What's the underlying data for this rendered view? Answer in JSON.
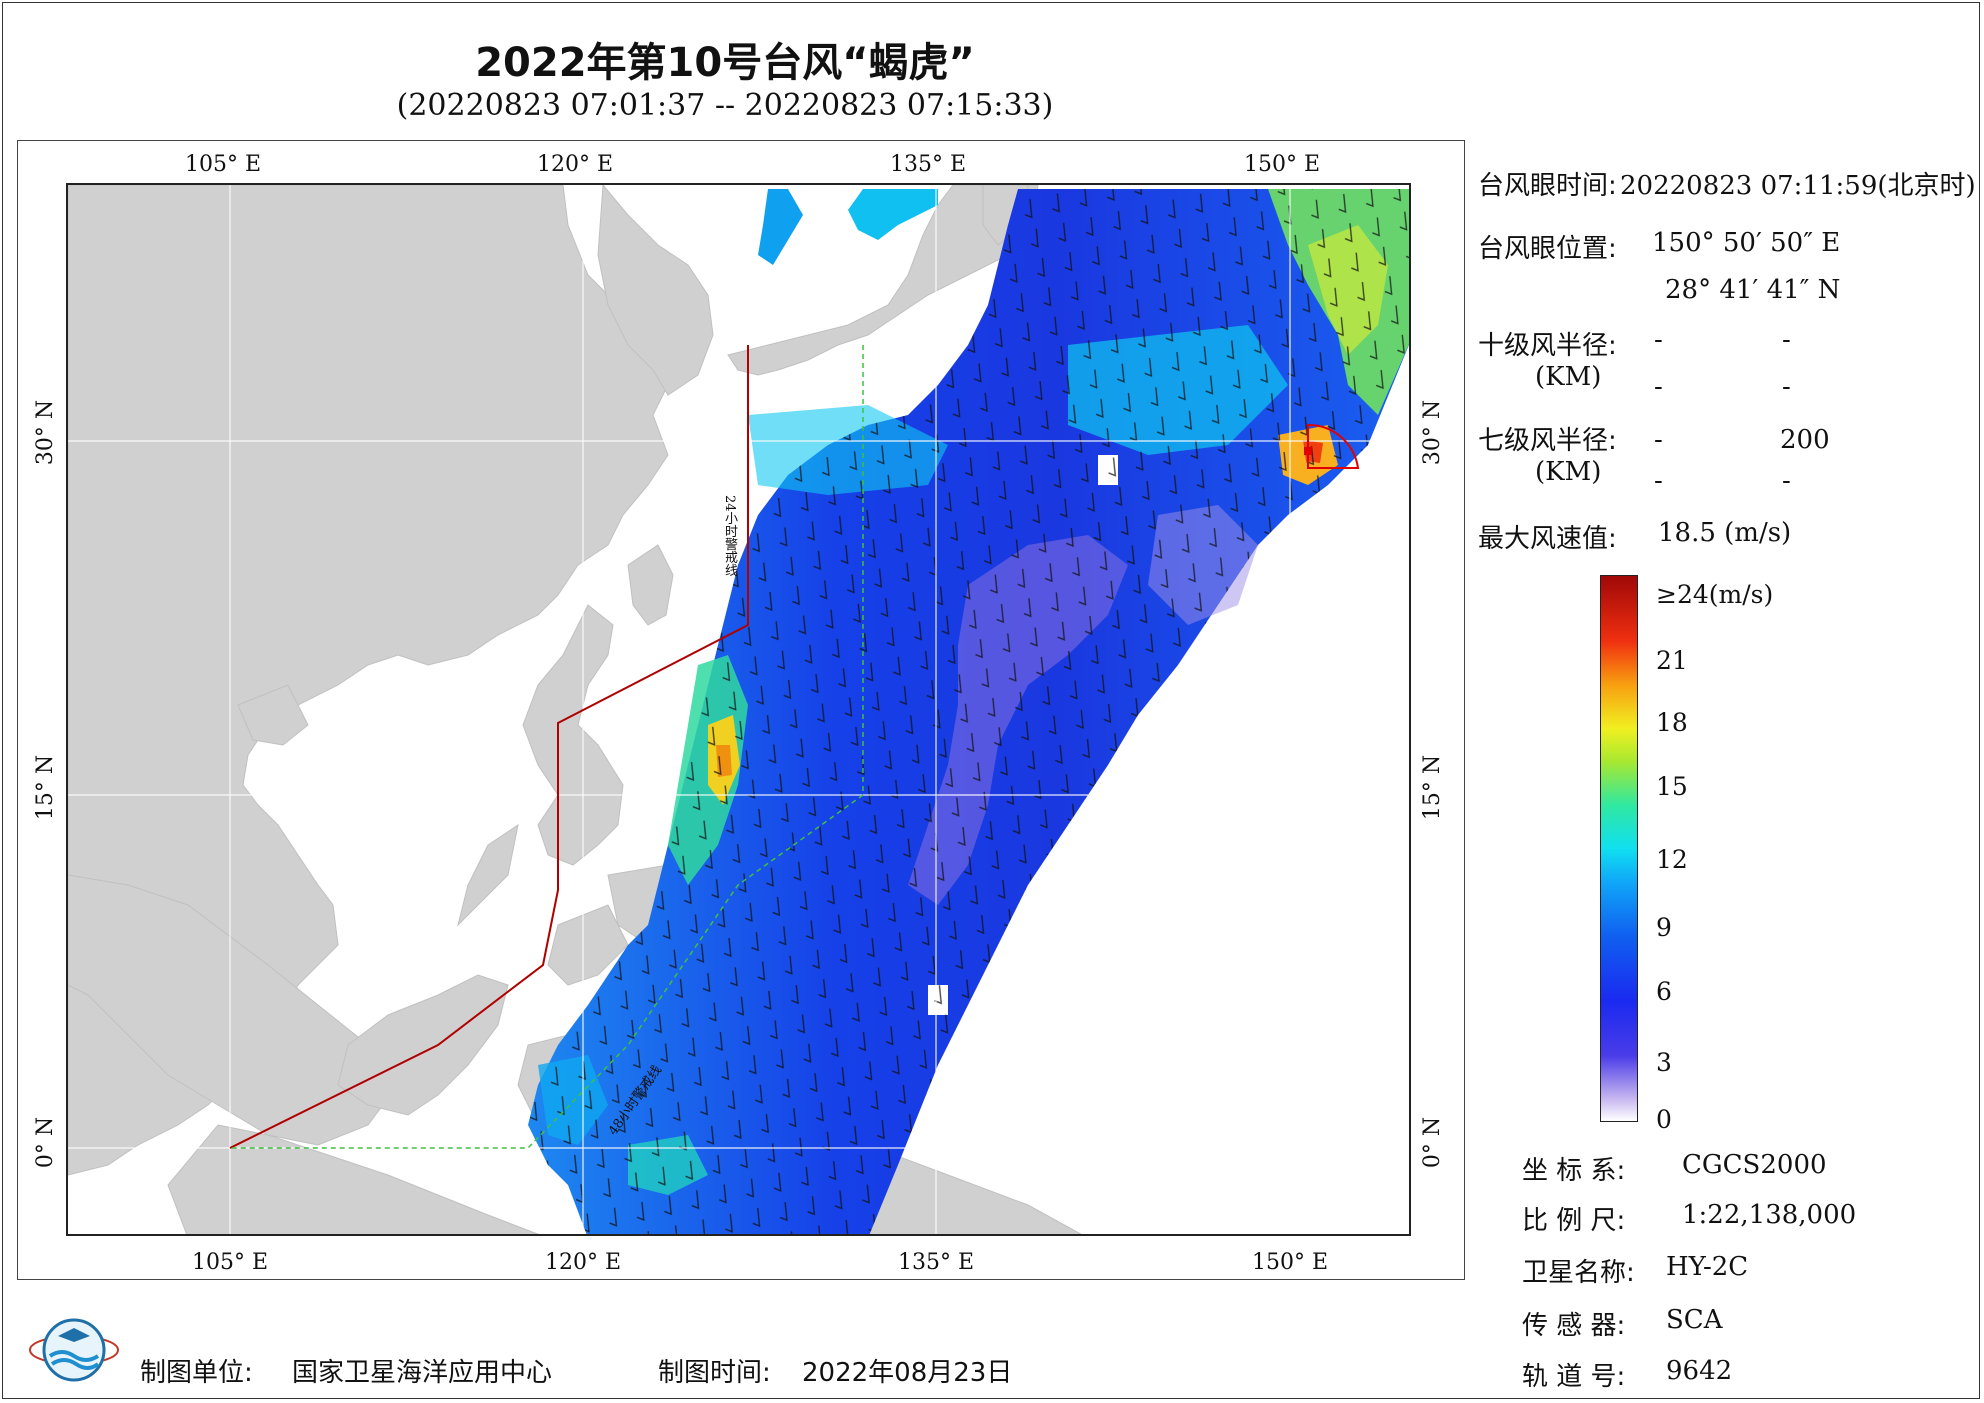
{
  "header": {
    "title": "2022年第10号台风“蝎虎”",
    "subtitle": "(20220823 07:01:37 -- 20220823 07:15:33)"
  },
  "map": {
    "lon_labels": [
      "105° E",
      "120° E",
      "135° E",
      "150° E"
    ],
    "lat_labels": [
      "30° N",
      "15° N",
      "0° N"
    ],
    "line_24h_label": "24小时警戒线",
    "line_48h_label": "48小时警戒线",
    "colors": {
      "land": "#d0d0d0",
      "sea": "#ffffff",
      "warning_line": "#b00000",
      "line_48h": "#40c040",
      "circle": "#e00000"
    }
  },
  "info": {
    "eye_time_label": "台风眼时间:",
    "eye_time_value": "20220823 07:11:59(北京时)",
    "eye_pos_label": "台风眼位置:",
    "eye_lon": "150° 50′ 50″ E",
    "eye_lat": "28° 41′ 41″ N",
    "r10_label": "十级风半径:",
    "r10_unit": "(KM)",
    "r10_values": [
      "-",
      "-",
      "-",
      "-"
    ],
    "r7_label": "七级风半径:",
    "r7_unit": "(KM)",
    "r7_values": [
      "-",
      "200",
      "-",
      "-"
    ],
    "max_wind_label": "最大风速值:",
    "max_wind_value": "18.5  (m/s)"
  },
  "colorbar": {
    "labels": [
      "≥24(m/s)",
      "21",
      "18",
      "15",
      "12",
      "9",
      "6",
      "3",
      "0"
    ]
  },
  "meta": {
    "coord_label": "坐 标 系:",
    "coord_value": "CGCS2000",
    "scale_label": "比 例 尺:",
    "scale_value": "1:22,138,000",
    "sat_label": "卫星名称:",
    "sat_value": "HY-2C",
    "sensor_label": "传 感 器:",
    "sensor_value": "SCA",
    "orbit_label": "轨 道 号:",
    "orbit_value": "9642"
  },
  "footer": {
    "org_label": "制图单位:",
    "org_value": "国家卫星海洋应用中心",
    "date_label": "制图时间:",
    "date_value": "2022年08月23日"
  }
}
